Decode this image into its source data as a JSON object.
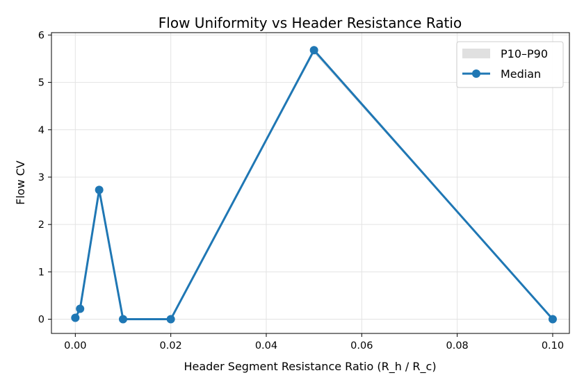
{
  "chart_data": {
    "type": "line",
    "title": "Flow Uniformity vs Header Resistance Ratio",
    "xlabel": "Header Segment Resistance Ratio (R_h / R_c)",
    "ylabel": "Flow CV",
    "xlim": [
      -0.005,
      0.1035
    ],
    "ylim": [
      -0.3,
      6.05
    ],
    "xticks": [
      0.0,
      0.02,
      0.04,
      0.06,
      0.08,
      0.1
    ],
    "xtick_labels": [
      "0.00",
      "0.02",
      "0.04",
      "0.06",
      "0.08",
      "0.10"
    ],
    "yticks": [
      0,
      1,
      2,
      3,
      4,
      5,
      6
    ],
    "ytick_labels": [
      "0",
      "1",
      "2",
      "3",
      "4",
      "5",
      "6"
    ],
    "grid": true,
    "legend_position": "top-right",
    "series": [
      {
        "name": "Median",
        "kind": "line-marker",
        "color": "#1f77b4",
        "x": [
          0.0,
          0.001,
          0.005,
          0.01,
          0.02,
          0.05,
          0.1
        ],
        "y": [
          0.03,
          0.22,
          2.73,
          0.0,
          0.0,
          5.68,
          0.0
        ]
      },
      {
        "name": "P10–P90",
        "kind": "band",
        "color": "#d3d3d3",
        "x": [
          0.0,
          0.001,
          0.005,
          0.01,
          0.02,
          0.05,
          0.1
        ],
        "low": [
          0.02,
          0.2,
          2.7,
          0.0,
          0.0,
          5.62,
          0.0
        ],
        "high": [
          0.05,
          0.25,
          2.76,
          0.01,
          0.01,
          5.72,
          0.0
        ]
      }
    ]
  }
}
